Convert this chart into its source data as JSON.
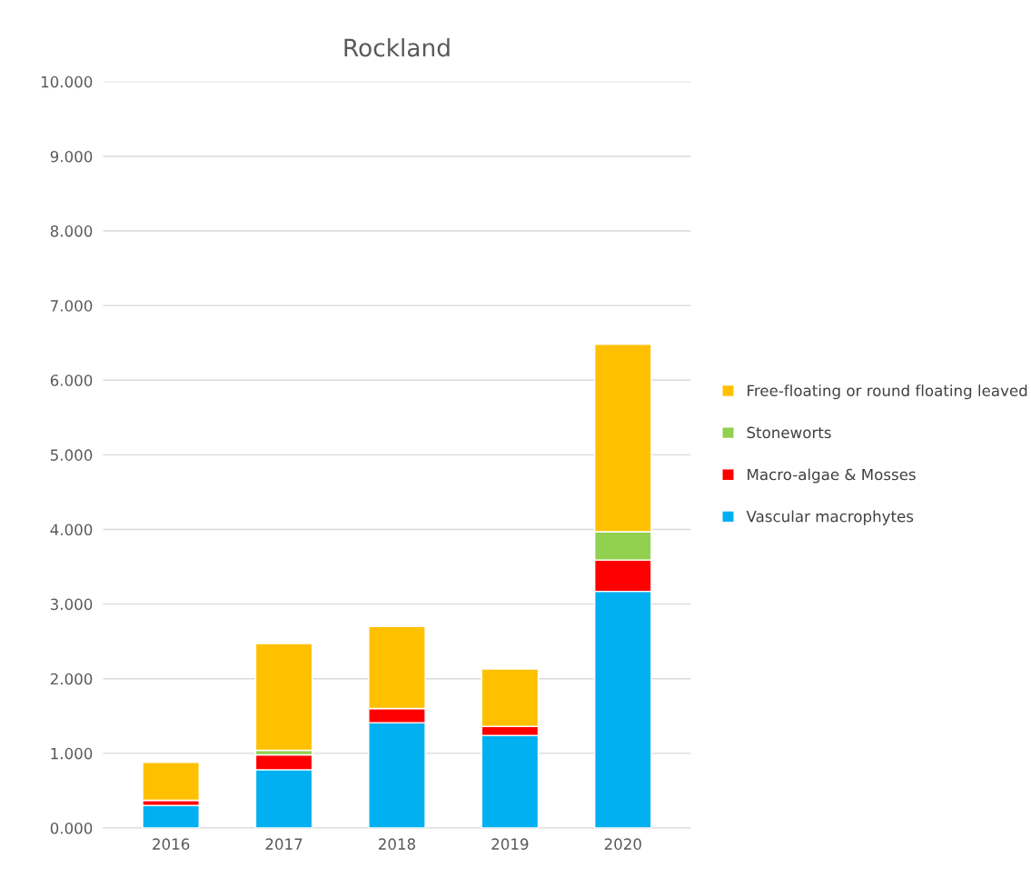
{
  "chart_data": {
    "type": "bar",
    "title": "Rockland",
    "stacked": true,
    "categories": [
      "2016",
      "2017",
      "2018",
      "2019",
      "2020"
    ],
    "series": [
      {
        "name": "Vascular macrophytes",
        "color": "#00b0f0",
        "values": [
          0.3,
          0.78,
          1.41,
          1.24,
          3.17
        ]
      },
      {
        "name": "Macro-algae & Mosses",
        "color": "#ff0000",
        "values": [
          0.07,
          0.2,
          0.19,
          0.12,
          0.42
        ]
      },
      {
        "name": "Stoneworts",
        "color": "#92d050",
        "values": [
          0,
          0.06,
          0,
          0,
          0.38
        ]
      },
      {
        "name": "Free-floating or round floating leaved",
        "color": "#ffc000",
        "values": [
          0.51,
          1.43,
          1.1,
          0.77,
          2.51
        ]
      }
    ],
    "ylim": [
      0,
      10
    ],
    "yticks": [
      {
        "value": 0,
        "label": "0.000"
      },
      {
        "value": 1,
        "label": "1.000"
      },
      {
        "value": 2,
        "label": "2.000"
      },
      {
        "value": 3,
        "label": "3.000"
      },
      {
        "value": 4,
        "label": "4.000"
      },
      {
        "value": 5,
        "label": "5.000"
      },
      {
        "value": 6,
        "label": "6.000"
      },
      {
        "value": 7,
        "label": "7.000"
      },
      {
        "value": 8,
        "label": "8.000"
      },
      {
        "value": 9,
        "label": "9.000"
      },
      {
        "value": 10,
        "label": "10.000"
      }
    ],
    "grid": "y",
    "legend": "right"
  }
}
